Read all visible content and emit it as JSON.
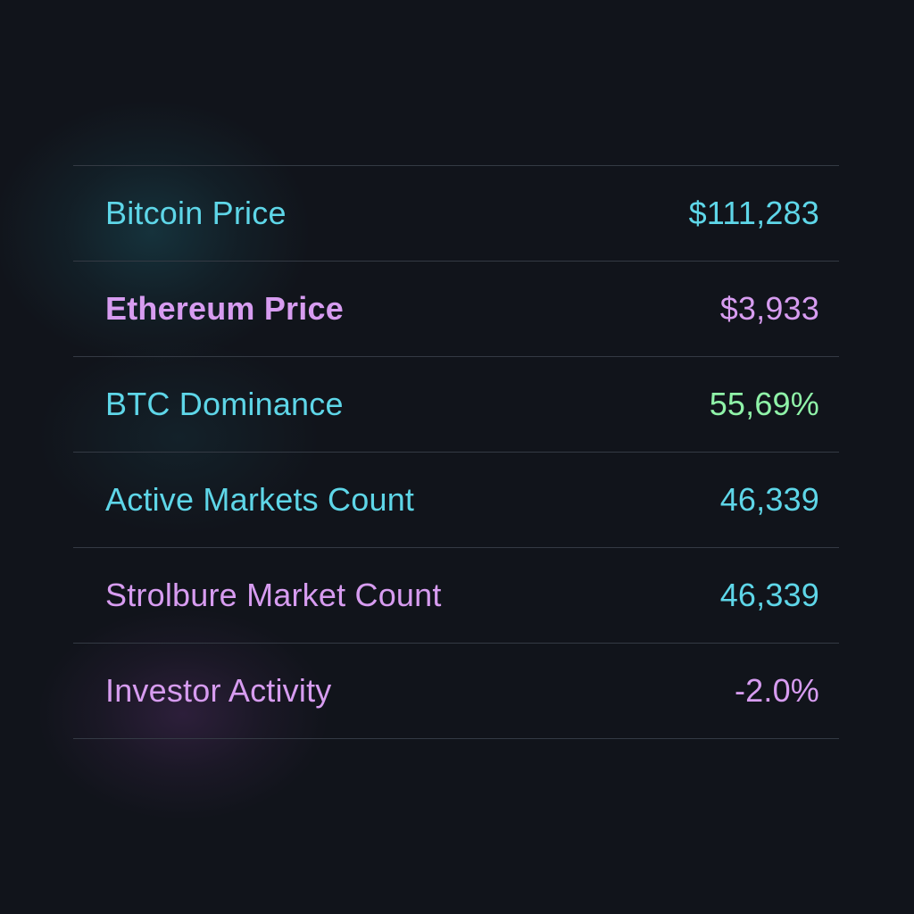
{
  "colors": {
    "background": "#11141b",
    "cyan": "#5ed6e8",
    "purple": "#d79cf0",
    "green": "#8ff2a8",
    "divider": "#343a44"
  },
  "stats": [
    {
      "label": "Bitcoin Price",
      "value": "$111,283"
    },
    {
      "label": "Ethereum Price",
      "value": "$3,933"
    },
    {
      "label": "BTC Dominance",
      "value": "55,69%"
    },
    {
      "label": "Active Markets Count",
      "value": "46,339"
    },
    {
      "label": "Strolbure Market Count",
      "value": "46,339"
    },
    {
      "label": "Investor Activity",
      "value": "-2.0%"
    }
  ]
}
